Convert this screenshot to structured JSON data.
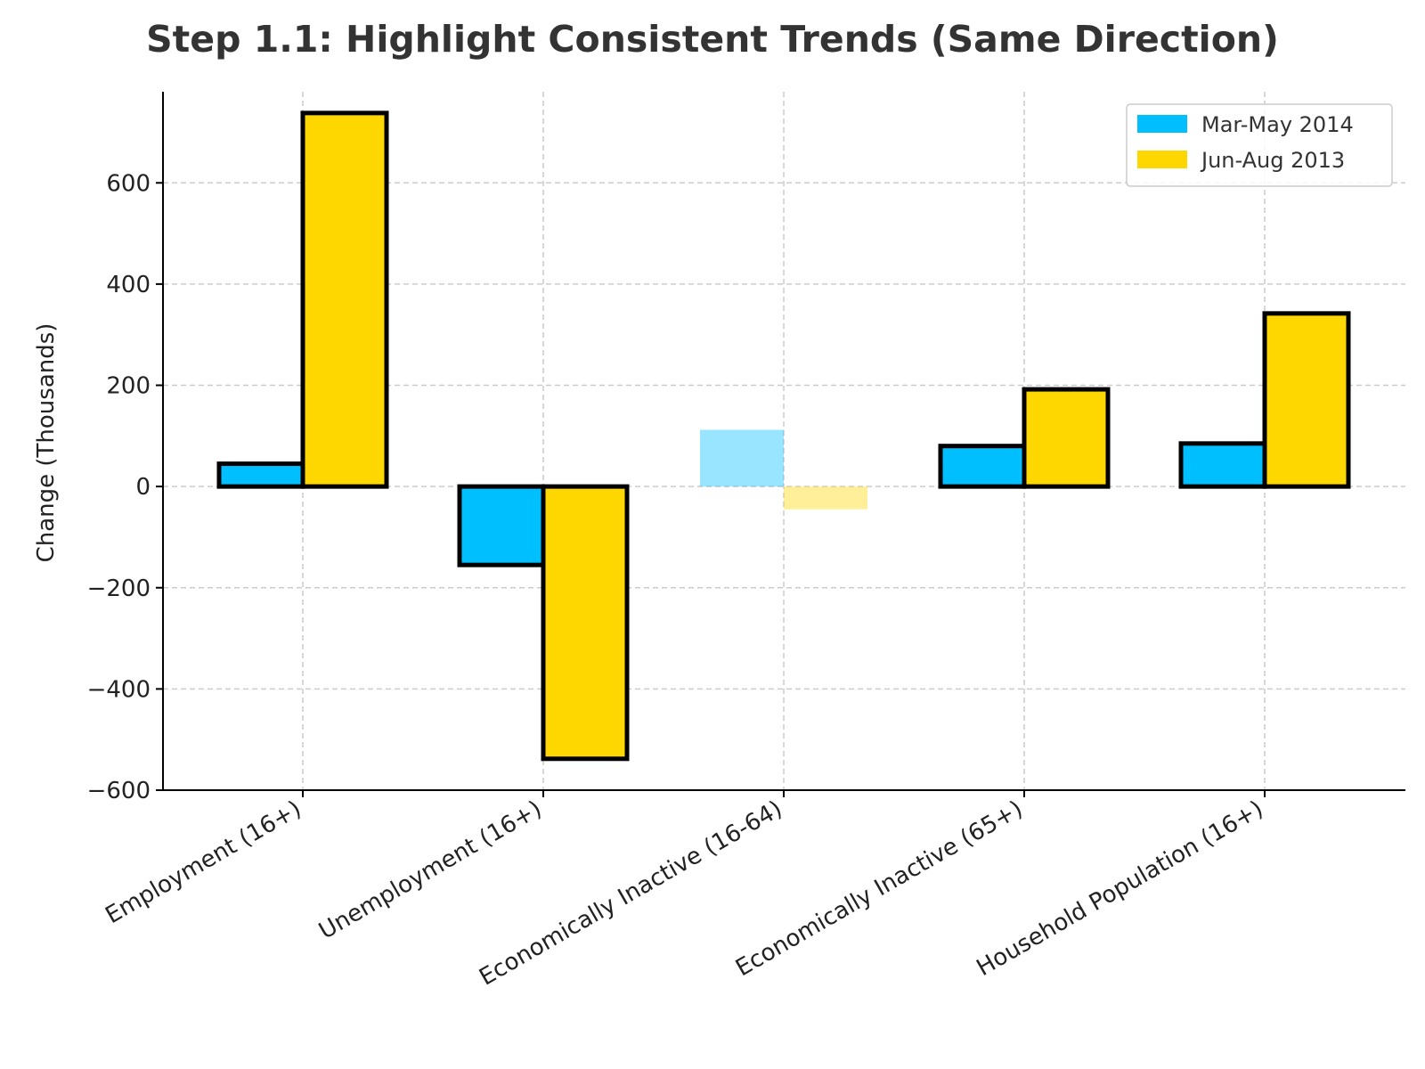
{
  "chart_data": {
    "type": "bar",
    "title": "Step 1.1: Highlight Consistent Trends (Same Direction)",
    "xlabel": "",
    "ylabel": "Change (Thousands)",
    "ylim": [
      -600,
      780
    ],
    "yticks": [
      -600,
      -400,
      -200,
      0,
      200,
      400,
      600
    ],
    "grid": true,
    "legend_position": "top-right",
    "categories": [
      "Employment (16+)",
      "Unemployment (16+)",
      "Economically Inactive (16-64)",
      "Economically Inactive (65+)",
      "Household Population (16+)"
    ],
    "highlighted": [
      true,
      true,
      false,
      true,
      true
    ],
    "series": [
      {
        "name": "Mar-May 2014",
        "color": "#00BFFF",
        "values": [
          45,
          -155,
          112,
          80,
          85
        ]
      },
      {
        "name": "Jun-Aug 2013",
        "color": "#FFD700",
        "values": [
          738,
          -538,
          -45,
          192,
          342
        ]
      }
    ]
  }
}
